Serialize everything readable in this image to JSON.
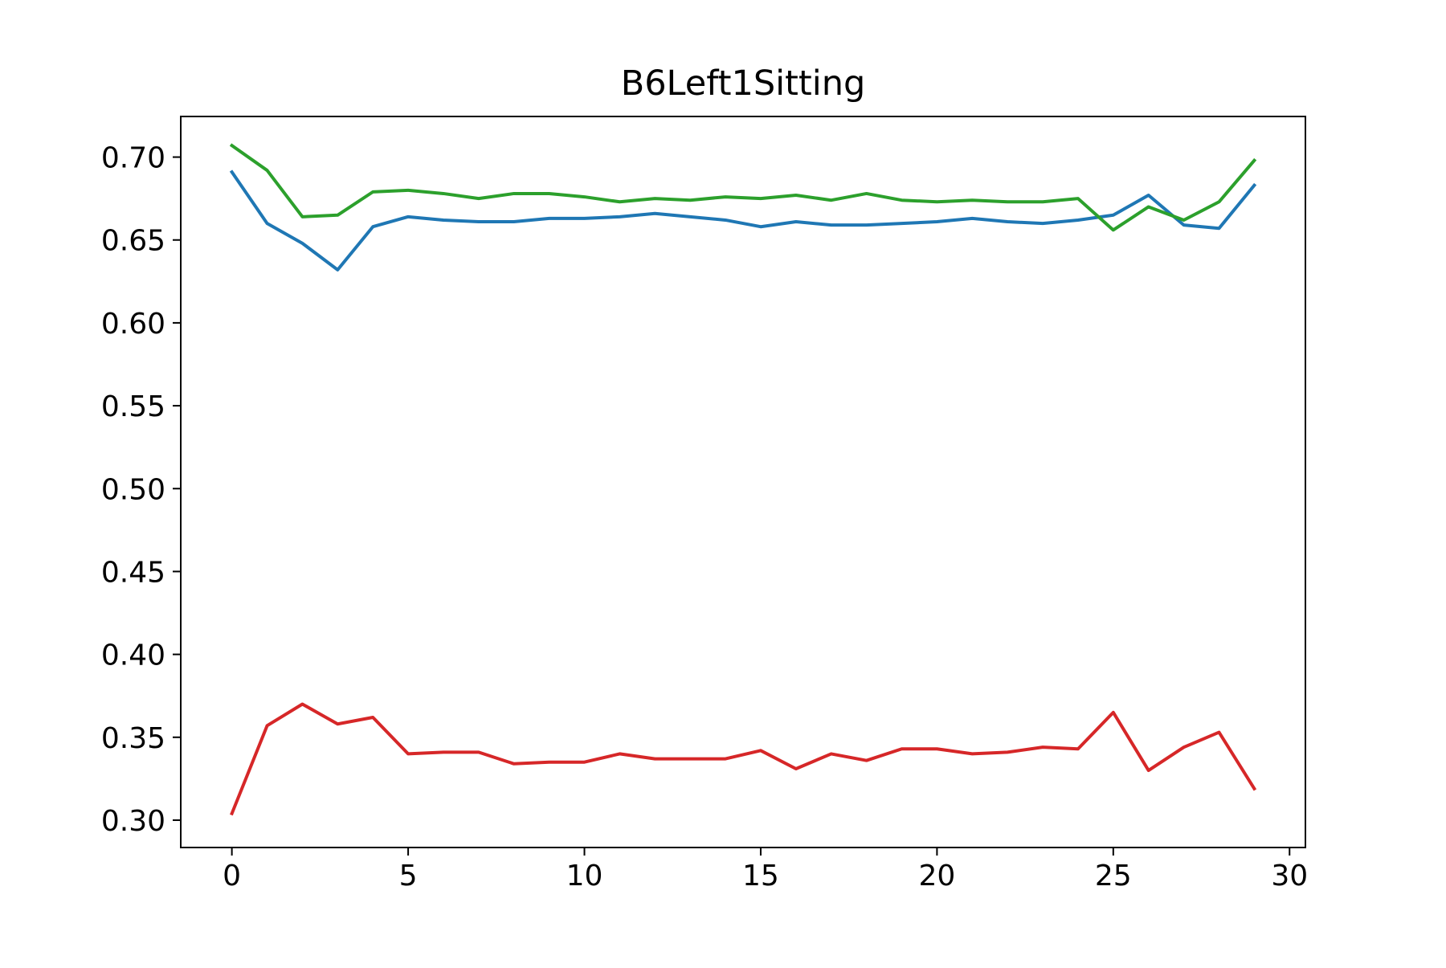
{
  "chart_data": {
    "type": "line",
    "title": "B6Left1Sitting",
    "xlabel": "",
    "ylabel": "",
    "xlim": [
      -1.45,
      30.45
    ],
    "ylim": [
      0.2835,
      0.7245
    ],
    "x_ticks": [
      "0",
      "5",
      "10",
      "15",
      "20",
      "25",
      "30"
    ],
    "y_ticks": [
      "0.30",
      "0.35",
      "0.40",
      "0.45",
      "0.50",
      "0.55",
      "0.60",
      "0.65",
      "0.70"
    ],
    "grid": false,
    "x": [
      0,
      1,
      2,
      3,
      4,
      5,
      6,
      7,
      8,
      9,
      10,
      11,
      12,
      13,
      14,
      15,
      16,
      17,
      18,
      19,
      20,
      21,
      22,
      23,
      24,
      25,
      26,
      27,
      28,
      29
    ],
    "series": [
      {
        "color": "#1f77b4",
        "values": [
          0.691,
          0.66,
          0.648,
          0.632,
          0.658,
          0.664,
          0.662,
          0.661,
          0.661,
          0.663,
          0.663,
          0.664,
          0.666,
          0.664,
          0.662,
          0.658,
          0.661,
          0.659,
          0.659,
          0.66,
          0.661,
          0.663,
          0.661,
          0.66,
          0.662,
          0.665,
          0.677,
          0.659,
          0.657,
          0.683
        ]
      },
      {
        "color": "#2ca02c",
        "values": [
          0.707,
          0.692,
          0.664,
          0.665,
          0.679,
          0.68,
          0.678,
          0.675,
          0.678,
          0.678,
          0.676,
          0.673,
          0.675,
          0.674,
          0.676,
          0.675,
          0.677,
          0.674,
          0.678,
          0.674,
          0.673,
          0.674,
          0.673,
          0.673,
          0.675,
          0.656,
          0.67,
          0.662,
          0.673,
          0.698
        ]
      },
      {
        "color": "#d62728",
        "values": [
          0.304,
          0.357,
          0.37,
          0.358,
          0.362,
          0.34,
          0.341,
          0.341,
          0.334,
          0.335,
          0.335,
          0.34,
          0.337,
          0.337,
          0.337,
          0.342,
          0.331,
          0.34,
          0.336,
          0.343,
          0.343,
          0.34,
          0.341,
          0.344,
          0.343,
          0.365,
          0.33,
          0.344,
          0.353,
          0.319
        ]
      }
    ]
  }
}
